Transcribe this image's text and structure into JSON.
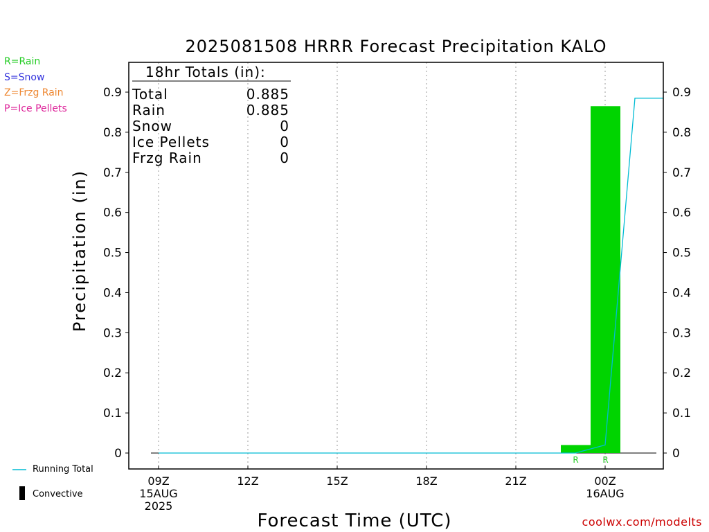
{
  "title": "2025081508 HRRR Forecast Precipitation KALO",
  "legend": [
    {
      "label": "R=Rain",
      "color": "#22cc22"
    },
    {
      "label": "S=Snow",
      "color": "#3333dd"
    },
    {
      "label": "Z=Frzg Rain",
      "color": "#ee8833"
    },
    {
      "label": "P=Ice Pellets",
      "color": "#dd2299"
    }
  ],
  "totals": {
    "header": "18hr Totals (in):",
    "rows": [
      {
        "label": "Total",
        "value": "0.885"
      },
      {
        "label": "Rain",
        "value": "0.885"
      },
      {
        "label": "Snow",
        "value": "0"
      },
      {
        "label": "Ice Pellets",
        "value": "0"
      },
      {
        "label": "Frzg Rain",
        "value": "0"
      }
    ]
  },
  "footer_legend": {
    "running_total": "Running Total",
    "convective": "Convective"
  },
  "source": "coolwx.com/modelts",
  "colors": {
    "rain_bar": "#00d400",
    "running_total_line": "#00bcd4",
    "rain_label": "#22cc22"
  },
  "chart_data": {
    "type": "bar",
    "xlabel": "Forecast Time (UTC)",
    "ylabel": "Precipitation (in)",
    "ylim": [
      0,
      0.97
    ],
    "xlim_hours": [
      -0.5,
      17.2
    ],
    "y_ticks": [
      0,
      0.1,
      0.2,
      0.3,
      0.4,
      0.5,
      0.6,
      0.7,
      0.8,
      0.9
    ],
    "y_tick_labels": [
      "0",
      "0.1",
      "0.2",
      "0.3",
      "0.4",
      "0.5",
      "0.6",
      "0.7",
      "0.8",
      "0.9"
    ],
    "x_ticks": [
      {
        "hour": 0,
        "lines": [
          "09Z",
          "15AUG",
          "2025"
        ]
      },
      {
        "hour": 3,
        "lines": [
          "12Z"
        ]
      },
      {
        "hour": 6,
        "lines": [
          "15Z"
        ]
      },
      {
        "hour": 9,
        "lines": [
          "18Z"
        ]
      },
      {
        "hour": 12,
        "lines": [
          "21Z"
        ]
      },
      {
        "hour": 15,
        "lines": [
          "00Z",
          "16AUG"
        ]
      }
    ],
    "grid": "vertical-dotted",
    "bars": [
      {
        "start_hour": 14,
        "end_hour": 15,
        "value": 0.02,
        "type_label": "R"
      },
      {
        "start_hour": 15,
        "end_hour": 16,
        "value": 0.865,
        "type_label": "R"
      }
    ],
    "running_total": {
      "hours": [
        -0.25,
        14,
        15,
        16,
        17.2
      ],
      "values": [
        0,
        0,
        0.02,
        0.885,
        0.885
      ]
    }
  }
}
